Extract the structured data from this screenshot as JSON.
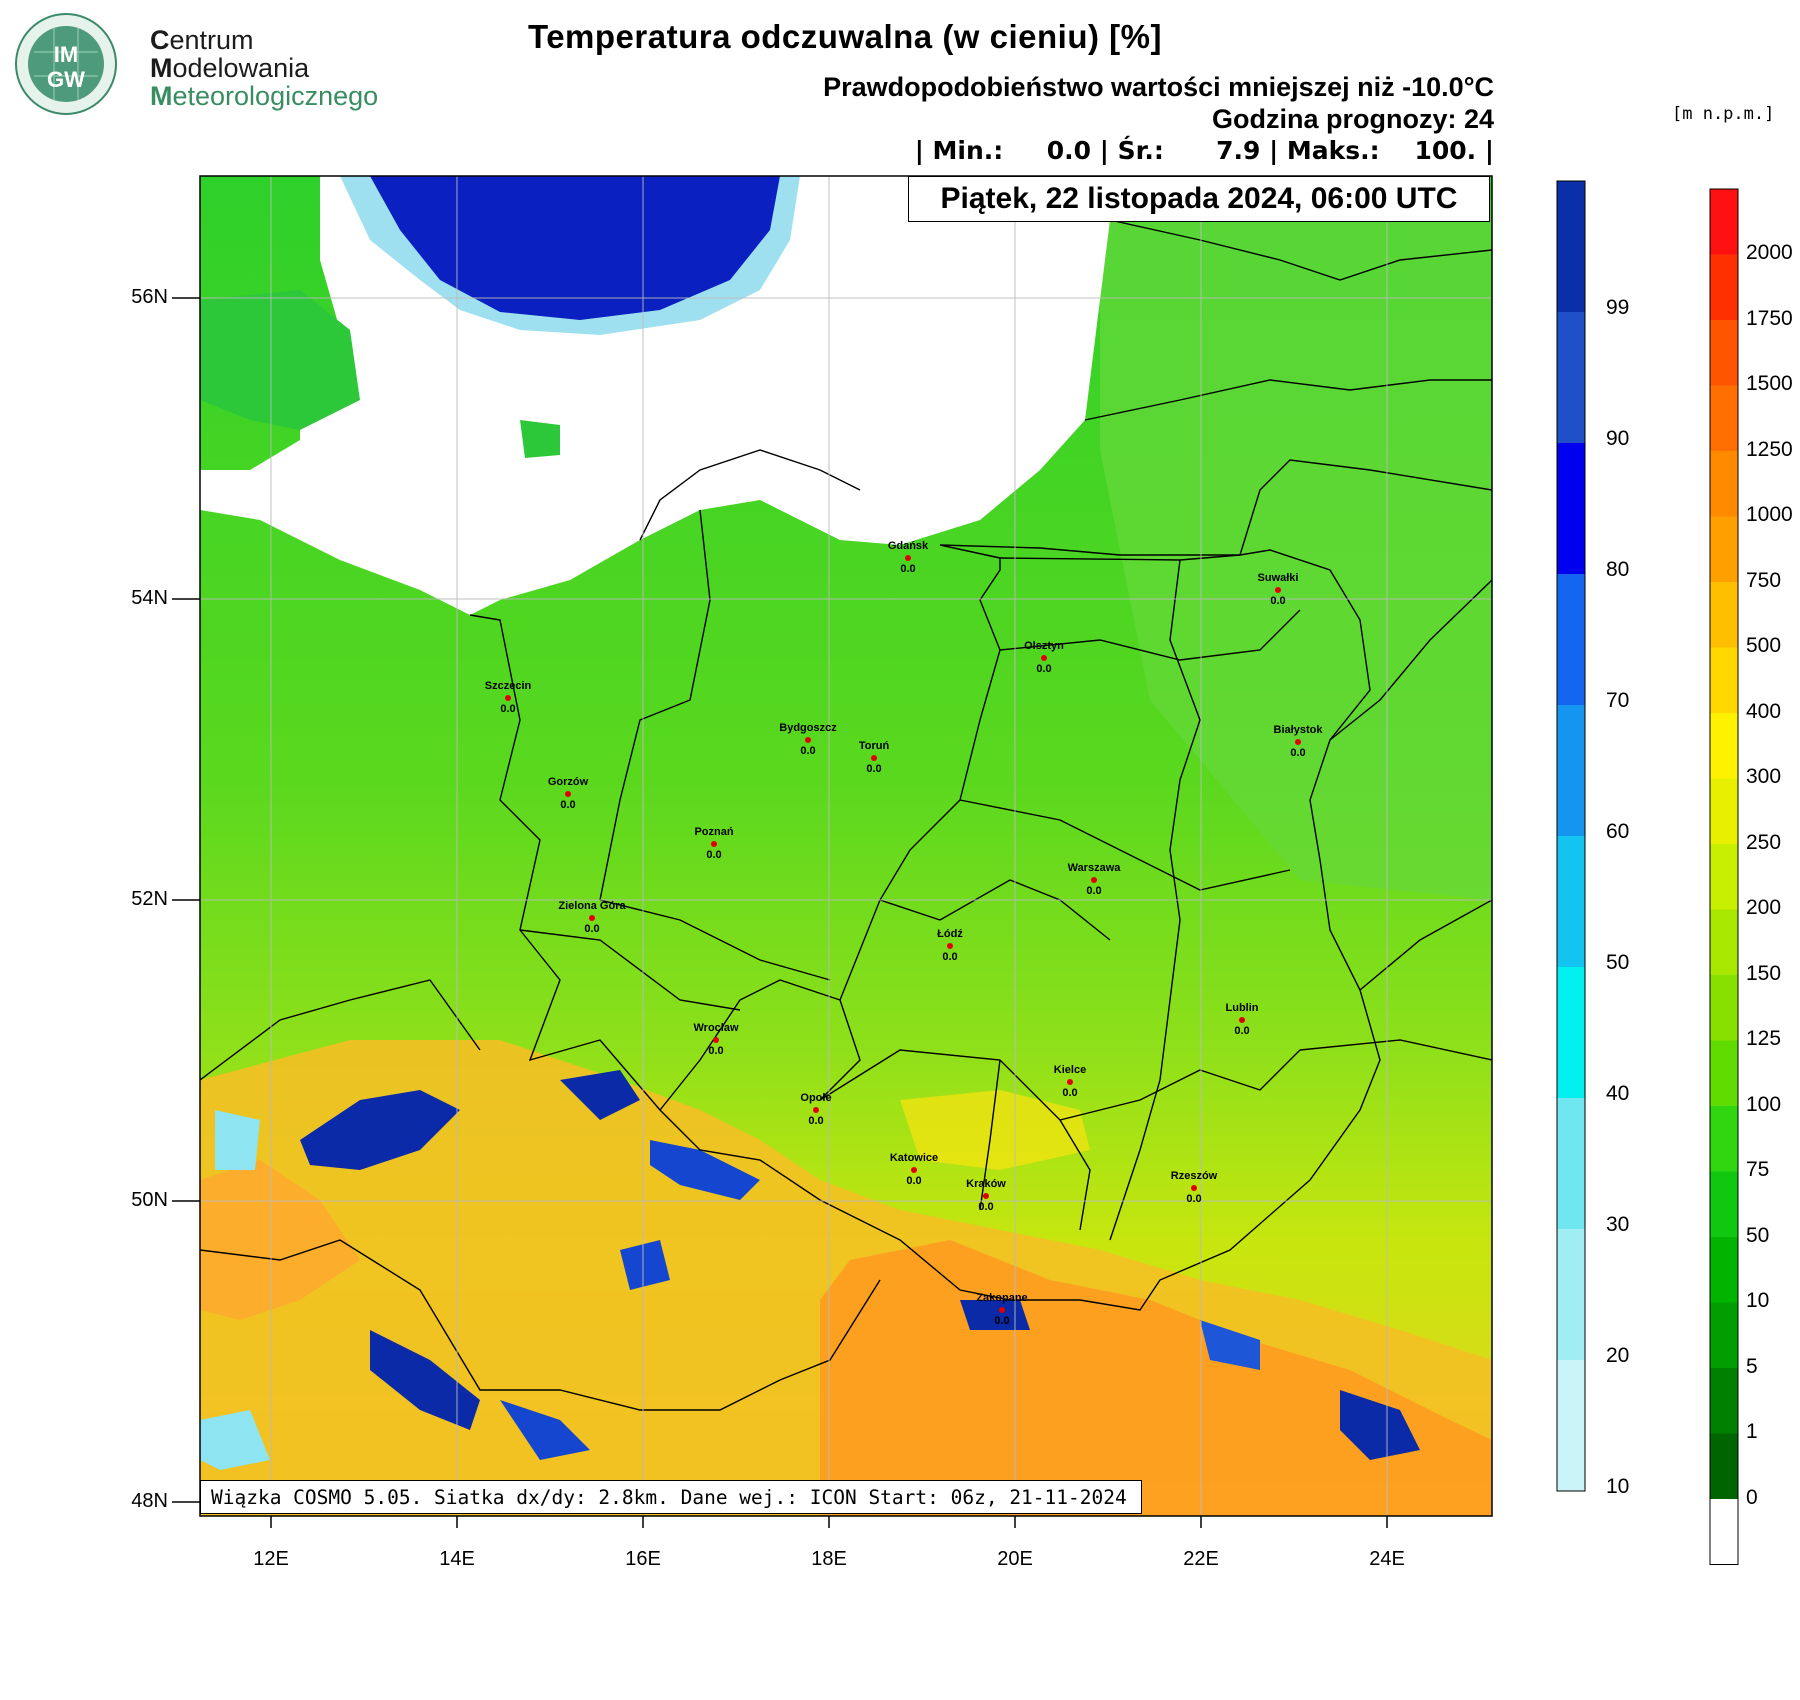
{
  "logo": {
    "badge_top": "IM",
    "badge_bottom": "GW",
    "line1_initial": "C",
    "line1_rest": "entrum",
    "line2_initial": "M",
    "line2_rest": "odelowania",
    "line3_initial": "M",
    "line3_rest": "eteorologicznego"
  },
  "header": {
    "title": "Temperatura odczuwalna (w cieniu) [%]",
    "probability": "Prawdopodobieństwo wartości mniejszej niż -10.0°C",
    "forecast_hour": "Godzina prognozy: 24",
    "stats": "| Min.:     0.0 | Śr.:      7.9 | Maks.:    100. |",
    "date": "Piątek, 22 listopada 2024, 06:00 UTC"
  },
  "footer": "Wiązka COSMO 5.05. Siatka dx/dy: 2.8km. Dane wej.: ICON Start: 06z, 21-11-2024",
  "units": "[m n.p.m.]",
  "axes": {
    "lat_labels": [
      "56N",
      "54N",
      "52N",
      "50N",
      "48N"
    ],
    "lon_labels": [
      "12E",
      "14E",
      "16E",
      "18E",
      "20E",
      "22E",
      "24E"
    ]
  },
  "cities": [
    {
      "name": "Gdańsk",
      "value": "0.0"
    },
    {
      "name": "Suwałki",
      "value": "0.0"
    },
    {
      "name": "Olsztyn",
      "value": "0.0"
    },
    {
      "name": "Szczecin",
      "value": "0.0"
    },
    {
      "name": "Bydgoszcz",
      "value": "0.0"
    },
    {
      "name": "Toruń",
      "value": "0.0"
    },
    {
      "name": "Białystok",
      "value": "0.0"
    },
    {
      "name": "Gorzów",
      "value": "0.0"
    },
    {
      "name": "Poznań",
      "value": "0.0"
    },
    {
      "name": "Warszawa",
      "value": "0.0"
    },
    {
      "name": "Zielona Góra",
      "value": "0.0"
    },
    {
      "name": "Łódź",
      "value": "0.0"
    },
    {
      "name": "Lublin",
      "value": "0.0"
    },
    {
      "name": "Wrocław",
      "value": "0.0"
    },
    {
      "name": "Kielce",
      "value": "0.0"
    },
    {
      "name": "Opole",
      "value": "0.0"
    },
    {
      "name": "Katowice",
      "value": "0.0"
    },
    {
      "name": "Kraków",
      "value": "0.0"
    },
    {
      "name": "Rzeszów",
      "value": "0.0"
    },
    {
      "name": "Zakopane",
      "value": "0.0"
    }
  ],
  "prob_colorbar": {
    "labels": [
      "99",
      "90",
      "80",
      "70",
      "60",
      "50",
      "40",
      "30",
      "20",
      "10"
    ],
    "colors": [
      "#0a2fa8",
      "#1e4fc8",
      "#0000ee",
      "#1466f0",
      "#1496f0",
      "#14c4f0",
      "#00f0f0",
      "#70e6f0",
      "#a0eef4",
      "#c8f4f8",
      "#e4fafc"
    ]
  },
  "elev_colorbar": {
    "labels": [
      "2000",
      "1750",
      "1500",
      "1250",
      "1000",
      "750",
      "500",
      "400",
      "300",
      "250",
      "200",
      "150",
      "125",
      "100",
      "75",
      "50",
      "10",
      "5",
      "1",
      "0"
    ],
    "colors": [
      "#ff1010",
      "#ff3000",
      "#ff5500",
      "#ff6e00",
      "#ff8a00",
      "#ffa000",
      "#ffbe00",
      "#ffd800",
      "#fff200",
      "#e8f000",
      "#c8ee00",
      "#a8e800",
      "#88e000",
      "#60dc00",
      "#30d610",
      "#10c810",
      "#00b400",
      "#009e00",
      "#008000",
      "#006400"
    ]
  }
}
